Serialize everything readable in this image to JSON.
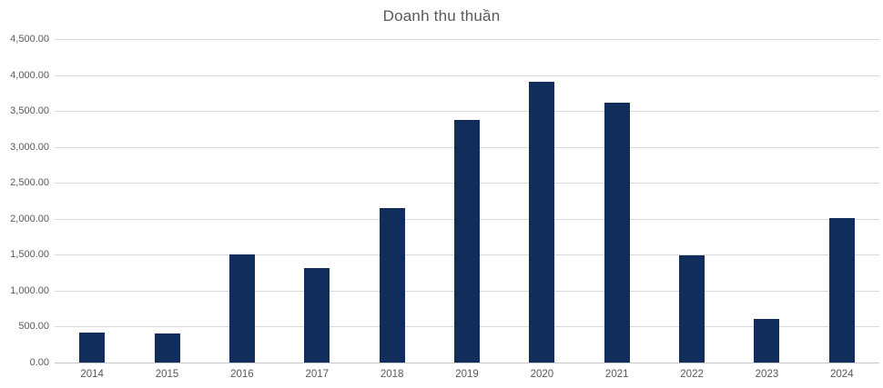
{
  "chart": {
    "title": "Doanh thu thuần"
  },
  "chart_data": {
    "type": "bar",
    "title": "Doanh thu thuần",
    "xlabel": "",
    "ylabel": "",
    "categories": [
      "2014",
      "2015",
      "2016",
      "2017",
      "2018",
      "2019",
      "2020",
      "2021",
      "2022",
      "2023",
      "2024"
    ],
    "values": [
      420,
      400,
      1510,
      1320,
      2150,
      3380,
      3900,
      3610,
      1490,
      610,
      2010
    ],
    "ylim": [
      0,
      4500
    ],
    "ytick_step": 500,
    "ytick_labels": [
      "0.00",
      "500.00",
      "1,000.00",
      "1,500.00",
      "2,000.00",
      "2,500.00",
      "3,000.00",
      "3,500.00",
      "4,000.00",
      "4,500.00"
    ],
    "grid": true,
    "legend": false,
    "bar_color": "#112d5c",
    "grid_color": "#d9d9d9",
    "axis_line_color": "#c6c6c6",
    "text_color": "#595959"
  }
}
